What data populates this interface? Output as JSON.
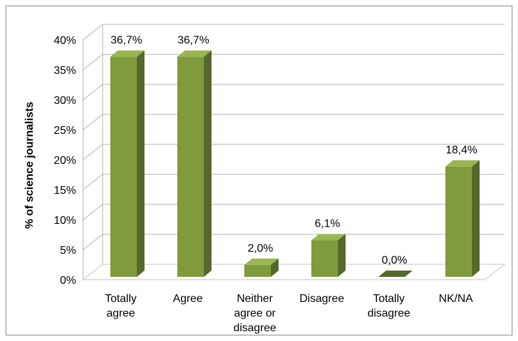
{
  "chart_data": {
    "type": "bar",
    "title": "",
    "xlabel": "",
    "ylabel": "% of science journalists",
    "ylim": [
      0,
      40
    ],
    "ytick_step": 5,
    "y_tick_labels": [
      "0%",
      "5%",
      "10%",
      "15%",
      "20%",
      "25%",
      "30%",
      "35%",
      "40%"
    ],
    "grid": true,
    "categories": [
      [
        "Totally",
        "agree"
      ],
      [
        "Agree"
      ],
      [
        "Neither",
        "agree or",
        "disagree"
      ],
      [
        "Disagree"
      ],
      [
        "Totally",
        "disagree"
      ],
      [
        "NK/NA"
      ]
    ],
    "values": [
      36.7,
      36.7,
      2.0,
      6.1,
      0.0,
      18.4
    ],
    "data_labels": [
      "36,7%",
      "36,7%",
      "2,0%",
      "6,1%",
      "0,0%",
      "18,4%"
    ],
    "colors": {
      "bar_front": "#7f9b3c",
      "bar_side": "#56682a",
      "bar_top": "#9ab651",
      "grid": "#b0b0b0",
      "floor": "#cfcfcf"
    }
  }
}
